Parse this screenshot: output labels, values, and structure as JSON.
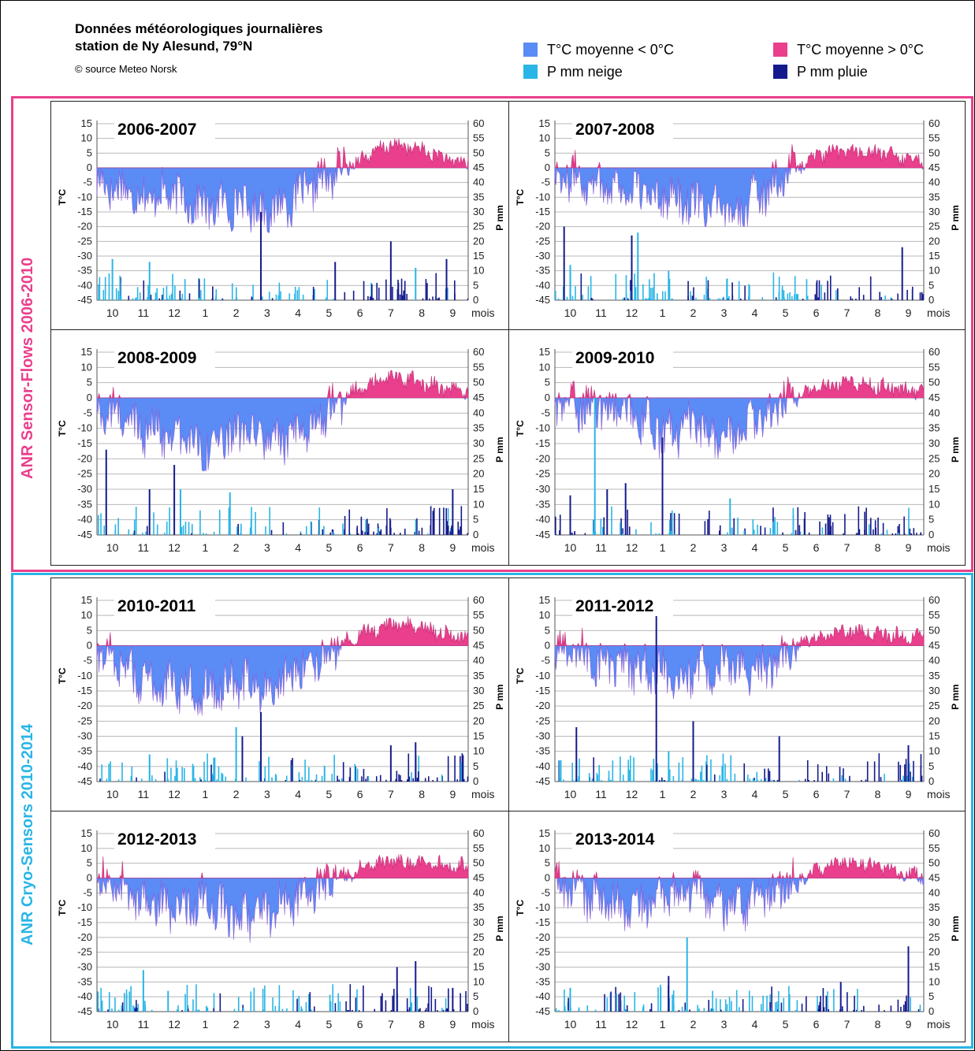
{
  "header": {
    "title_line1": "Données météorologiques journalières",
    "title_line2": "station de Ny Alesund, 79°N",
    "source": "© source Meteo Norsk"
  },
  "legend": [
    {
      "label": "T°C moyenne < 0°C",
      "color": "#5b8bf5"
    },
    {
      "label": "T°C moyenne > 0°C",
      "color": "#ea3f8c"
    },
    {
      "label": "P mm neige",
      "color": "#29b5e6"
    },
    {
      "label": "P mm pluie",
      "color": "#141a8c"
    }
  ],
  "sections": [
    {
      "label": "ANR Sensor-Flows 2006-2010",
      "color": "#ea3f8c"
    },
    {
      "label": "ANR Cryo-Sensors 2010-2014",
      "color": "#29b5e6"
    }
  ],
  "axis_text": {
    "left_label": "T°C",
    "right_label": "P mm",
    "x_unit": "mois",
    "left_ticks": [
      "15",
      "10",
      "5",
      "0",
      "-5",
      "-10",
      "-15",
      "-20",
      "-25",
      "-30",
      "-35",
      "-40",
      "-45"
    ],
    "right_ticks": [
      "60",
      "55",
      "50",
      "45",
      "40",
      "35",
      "30",
      "25",
      "20",
      "15",
      "10",
      "5",
      "0"
    ],
    "months": [
      "10",
      "11",
      "12",
      "1",
      "2",
      "3",
      "4",
      "5",
      "6",
      "7",
      "8",
      "9"
    ]
  },
  "chart_data": [
    {
      "type": "area",
      "title": "2006-2007",
      "x_unit": "mois",
      "ylabel": "T°C",
      "y2label": "P mm",
      "ylim": [
        -45,
        15
      ],
      "y2lim": [
        0,
        60
      ],
      "temperature_monthly": [
        -6,
        -10,
        -9,
        -14,
        -12,
        -15,
        -10,
        -3,
        3,
        8,
        6,
        2
      ],
      "temperature_extremes": {
        "min": -22,
        "max": 10
      },
      "precip_peaks": [
        {
          "x": "3",
          "value": 30,
          "type": "pluie"
        },
        {
          "x": "7",
          "value": 20,
          "type": "pluie"
        },
        {
          "x": "5",
          "value": 13,
          "type": "pluie"
        },
        {
          "x": "9",
          "value": 14,
          "type": "pluie"
        },
        {
          "x": "10",
          "value": 14,
          "type": "neige"
        },
        {
          "x": "11",
          "value": 13,
          "type": "neige"
        },
        {
          "x": "8",
          "value": 11,
          "type": "neige"
        }
      ],
      "series": [
        {
          "name": "T°C moyenne < 0°C"
        },
        {
          "name": "T°C moyenne > 0°C"
        },
        {
          "name": "P mm neige"
        },
        {
          "name": "P mm pluie"
        }
      ]
    },
    {
      "type": "area",
      "title": "2007-2008",
      "x_unit": "mois",
      "ylabel": "T°C",
      "y2label": "P mm",
      "ylim": [
        -45,
        15
      ],
      "y2lim": [
        0,
        60
      ],
      "temperature_monthly": [
        -3,
        -5,
        -8,
        -9,
        -12,
        -16,
        -10,
        -2,
        4,
        6,
        5,
        3
      ],
      "temperature_extremes": {
        "min": -20,
        "max": 8
      },
      "precip_peaks": [
        {
          "x": "10",
          "value": 25,
          "type": "pluie"
        },
        {
          "x": "12",
          "value": 22,
          "type": "pluie"
        },
        {
          "x": "12",
          "value": 23,
          "type": "neige"
        },
        {
          "x": "9",
          "value": 18,
          "type": "pluie"
        },
        {
          "x": "10",
          "value": 12,
          "type": "neige"
        },
        {
          "x": "1",
          "value": 10,
          "type": "neige"
        }
      ],
      "series": [
        {
          "name": "T°C moyenne < 0°C"
        },
        {
          "name": "T°C moyenne > 0°C"
        },
        {
          "name": "P mm neige"
        },
        {
          "name": "P mm pluie"
        }
      ]
    },
    {
      "type": "area",
      "title": "2008-2009",
      "x_unit": "mois",
      "ylabel": "T°C",
      "y2label": "P mm",
      "ylim": [
        -45,
        15
      ],
      "y2lim": [
        0,
        60
      ],
      "temperature_monthly": [
        -5,
        -10,
        -12,
        -16,
        -12,
        -13,
        -14,
        -2,
        3,
        7,
        5,
        2
      ],
      "temperature_extremes": {
        "min": -24,
        "max": 9
      },
      "precip_peaks": [
        {
          "x": "10",
          "value": 28,
          "type": "pluie"
        },
        {
          "x": "12",
          "value": 23,
          "type": "pluie"
        },
        {
          "x": "12",
          "value": 15,
          "type": "neige"
        },
        {
          "x": "2",
          "value": 14,
          "type": "neige"
        },
        {
          "x": "9",
          "value": 15,
          "type": "pluie"
        },
        {
          "x": "11",
          "value": 15,
          "type": "pluie"
        }
      ],
      "series": [
        {
          "name": "T°C moyenne < 0°C"
        },
        {
          "name": "T°C moyenne > 0°C"
        },
        {
          "name": "P mm neige"
        },
        {
          "name": "P mm pluie"
        }
      ]
    },
    {
      "type": "area",
      "title": "2009-2010",
      "x_unit": "mois",
      "ylabel": "T°C",
      "y2label": "P mm",
      "ylim": [
        -45,
        15
      ],
      "y2lim": [
        0,
        60
      ],
      "temperature_monthly": [
        -2,
        -3,
        -5,
        -12,
        -10,
        -14,
        -8,
        -1,
        3,
        6,
        4,
        2
      ],
      "temperature_extremes": {
        "min": -20,
        "max": 7
      },
      "precip_peaks": [
        {
          "x": "11",
          "value": 45,
          "type": "neige"
        },
        {
          "x": "1",
          "value": 32,
          "type": "pluie"
        },
        {
          "x": "11",
          "value": 15,
          "type": "pluie"
        },
        {
          "x": "12",
          "value": 17,
          "type": "pluie"
        },
        {
          "x": "10",
          "value": 13,
          "type": "pluie"
        },
        {
          "x": "3",
          "value": 12,
          "type": "neige"
        }
      ],
      "series": [
        {
          "name": "T°C moyenne < 0°C"
        },
        {
          "name": "T°C moyenne > 0°C"
        },
        {
          "name": "P mm neige"
        },
        {
          "name": "P mm pluie"
        }
      ]
    },
    {
      "type": "area",
      "title": "2010-2011",
      "x_unit": "mois",
      "ylabel": "T°C",
      "y2label": "P mm",
      "ylim": [
        -45,
        15
      ],
      "y2lim": [
        0,
        60
      ],
      "temperature_monthly": [
        -3,
        -12,
        -14,
        -15,
        -12,
        -14,
        -7,
        -2,
        4,
        7,
        6,
        3
      ],
      "temperature_extremes": {
        "min": -25,
        "max": 10
      },
      "precip_peaks": [
        {
          "x": "3",
          "value": 23,
          "type": "pluie"
        },
        {
          "x": "2",
          "value": 18,
          "type": "neige"
        },
        {
          "x": "2",
          "value": 15,
          "type": "pluie"
        },
        {
          "x": "8",
          "value": 13,
          "type": "pluie"
        },
        {
          "x": "7",
          "value": 12,
          "type": "pluie"
        },
        {
          "x": "11",
          "value": 9,
          "type": "neige"
        }
      ],
      "series": [
        {
          "name": "T°C moyenne < 0°C"
        },
        {
          "name": "T°C moyenne > 0°C"
        },
        {
          "name": "P mm neige"
        },
        {
          "name": "P mm pluie"
        }
      ]
    },
    {
      "type": "area",
      "title": "2011-2012",
      "x_unit": "mois",
      "ylabel": "T°C",
      "y2label": "P mm",
      "ylim": [
        -45,
        15
      ],
      "y2lim": [
        0,
        60
      ],
      "temperature_monthly": [
        -2,
        -6,
        -8,
        -9,
        -10,
        -7,
        -10,
        -2,
        3,
        5,
        4,
        3
      ],
      "temperature_extremes": {
        "min": -18,
        "max": 7
      },
      "precip_peaks": [
        {
          "x": "1",
          "value": 60,
          "type": "pluie"
        },
        {
          "x": "2",
          "value": 20,
          "type": "pluie"
        },
        {
          "x": "10",
          "value": 18,
          "type": "pluie"
        },
        {
          "x": "5",
          "value": 15,
          "type": "pluie"
        },
        {
          "x": "9",
          "value": 12,
          "type": "pluie"
        },
        {
          "x": "1",
          "value": 10,
          "type": "neige"
        }
      ],
      "series": [
        {
          "name": "T°C moyenne < 0°C"
        },
        {
          "name": "T°C moyenne > 0°C"
        },
        {
          "name": "P mm neige"
        },
        {
          "name": "P mm pluie"
        }
      ]
    },
    {
      "type": "area",
      "title": "2012-2013",
      "x_unit": "mois",
      "ylabel": "T°C",
      "y2label": "P mm",
      "ylim": [
        -45,
        15
      ],
      "y2lim": [
        0,
        60
      ],
      "temperature_monthly": [
        -2,
        -8,
        -11,
        -7,
        -14,
        -11,
        -7,
        -1,
        3,
        6,
        5,
        4
      ],
      "temperature_extremes": {
        "min": -22,
        "max": 8
      },
      "precip_peaks": [
        {
          "x": "8",
          "value": 17,
          "type": "pluie"
        },
        {
          "x": "11",
          "value": 14,
          "type": "neige"
        },
        {
          "x": "7",
          "value": 15,
          "type": "pluie"
        },
        {
          "x": "12",
          "value": 7,
          "type": "neige"
        },
        {
          "x": "9",
          "value": 8,
          "type": "pluie"
        }
      ],
      "series": [
        {
          "name": "T°C moyenne < 0°C"
        },
        {
          "name": "T°C moyenne > 0°C"
        },
        {
          "name": "P mm neige"
        },
        {
          "name": "P mm pluie"
        }
      ]
    },
    {
      "type": "area",
      "title": "2013-2014",
      "x_unit": "mois",
      "ylabel": "T°C",
      "y2label": "P mm",
      "ylim": [
        -45,
        15
      ],
      "y2lim": [
        0,
        60
      ],
      "temperature_monthly": [
        -3,
        -8,
        -10,
        -7,
        -5,
        -10,
        -9,
        -2,
        3,
        6,
        4,
        1
      ],
      "temperature_extremes": {
        "min": -18,
        "max": 7
      },
      "precip_peaks": [
        {
          "x": "2",
          "value": 25,
          "type": "neige"
        },
        {
          "x": "9",
          "value": 22,
          "type": "pluie"
        },
        {
          "x": "1",
          "value": 12,
          "type": "pluie"
        },
        {
          "x": "7",
          "value": 10,
          "type": "pluie"
        },
        {
          "x": "10",
          "value": 8,
          "type": "neige"
        }
      ],
      "series": [
        {
          "name": "T°C moyenne < 0°C"
        },
        {
          "name": "T°C moyenne > 0°C"
        },
        {
          "name": "P mm neige"
        },
        {
          "name": "P mm pluie"
        }
      ]
    }
  ]
}
